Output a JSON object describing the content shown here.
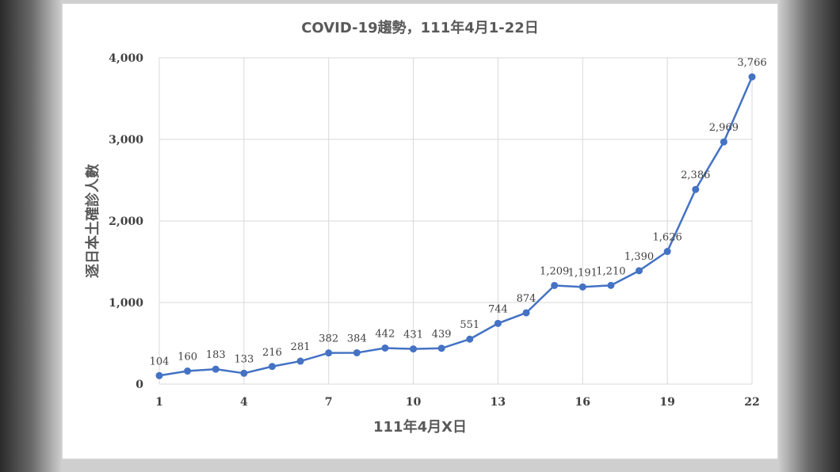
{
  "chart_data": {
    "type": "line",
    "title": "COVID-19趨勢，111年4月1-22日",
    "xlabel": "111年4月X日",
    "ylabel": "逐日本土確診人數",
    "x": [
      1,
      2,
      3,
      4,
      5,
      6,
      7,
      8,
      9,
      10,
      11,
      12,
      13,
      14,
      15,
      16,
      17,
      18,
      19,
      20,
      21,
      22
    ],
    "xticks": [
      1,
      4,
      7,
      10,
      13,
      16,
      19,
      22
    ],
    "xtick_labels": [
      "1",
      "4",
      "7",
      "10",
      "13",
      "16",
      "19",
      "22"
    ],
    "values": [
      104,
      160,
      183,
      133,
      216,
      281,
      382,
      384,
      442,
      431,
      439,
      551,
      744,
      874,
      1209,
      1191,
      1210,
      1390,
      1626,
      2386,
      2969,
      3766
    ],
    "data_labels": [
      "104",
      "160",
      "183",
      "133",
      "216",
      "281",
      "382",
      "384",
      "442",
      "431",
      "439",
      "551",
      "744",
      "874",
      "1,209",
      "1,191",
      "1,210",
      "1,390",
      "1,626",
      "2,386",
      "2,969",
      "3,766"
    ],
    "xlim": [
      1,
      22
    ],
    "ylim": [
      0,
      4000
    ],
    "yticks": [
      0,
      1000,
      2000,
      3000,
      4000
    ],
    "ytick_labels": [
      "0",
      "1,000",
      "2,000",
      "3,000",
      "4,000"
    ],
    "grid": true,
    "legend": "none",
    "line_color": "#4472C4"
  }
}
